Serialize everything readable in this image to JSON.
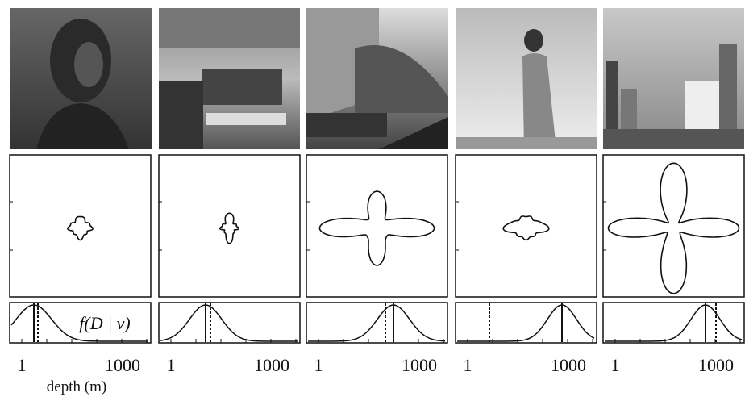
{
  "panels": [
    {
      "x_ticks": [
        "1",
        "1000"
      ]
    },
    {
      "x_ticks": [
        "1",
        "1000"
      ]
    },
    {
      "x_ticks": [
        "1",
        "1000"
      ]
    },
    {
      "x_ticks": [
        "1",
        "1000"
      ]
    },
    {
      "x_ticks": [
        "1",
        "1000"
      ]
    }
  ],
  "density_label": "f(D | v)",
  "x_axis_label": "depth (m)"
}
